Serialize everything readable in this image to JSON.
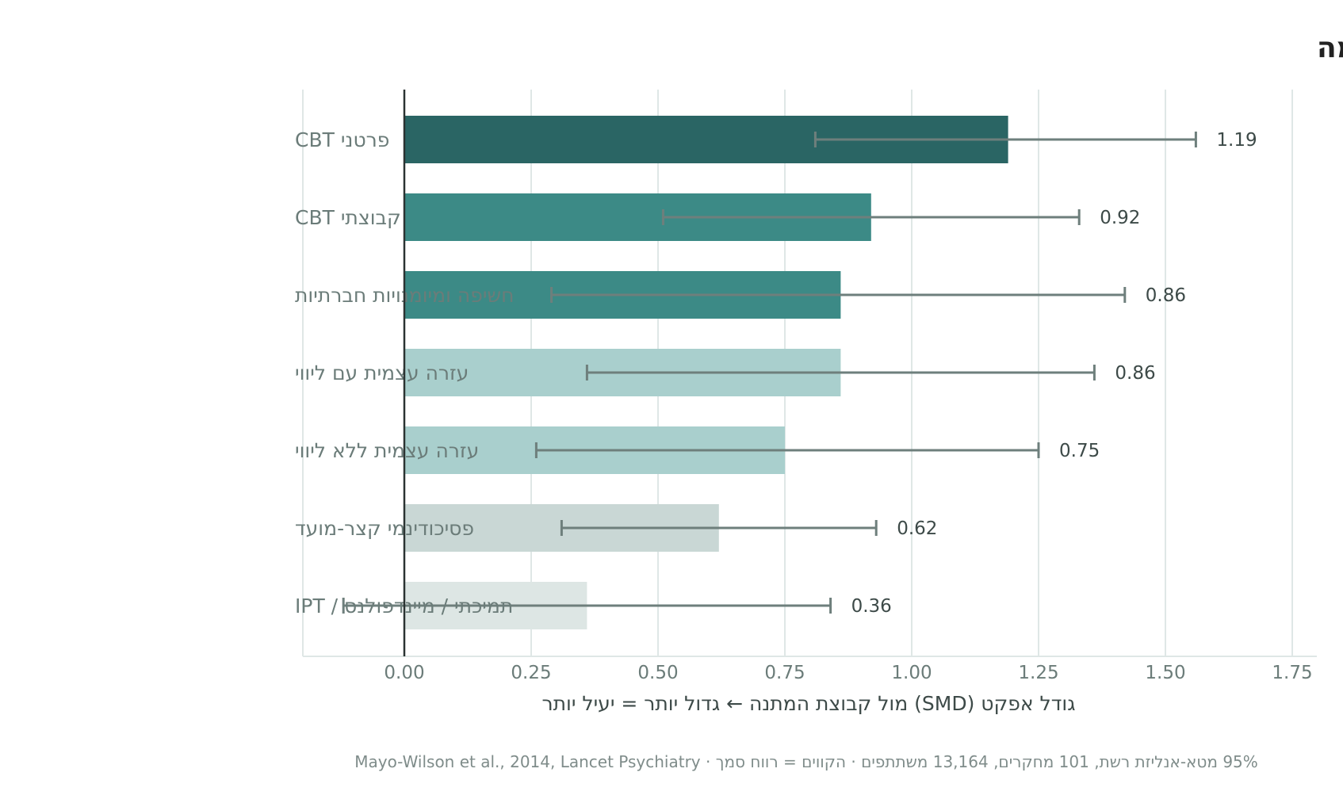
{
  "chart_data": {
    "type": "bar",
    "orientation": "horizontal",
    "title": "טיפולים פסיכולוגיים: מה עובד, ובכמה",
    "xlabel": "גודל אפקט (SMD) מול קבוצת המתנה  ←  גדול יותר = יעיל יותר",
    "xlim": [
      -0.2,
      1.8
    ],
    "xticks": [
      0.0,
      0.25,
      0.5,
      0.75,
      1.0,
      1.25,
      1.5,
      1.75
    ],
    "xtick_labels": [
      "0.00",
      "0.25",
      "0.50",
      "0.75",
      "1.00",
      "1.25",
      "1.50",
      "1.75"
    ],
    "grid": "vertical",
    "categories": [
      "פרטני CBT",
      "קבוצתי CBT",
      "חשיפה ומיומנויות חברתיות",
      "עזרה עצמית עם ליווי",
      "עזרה עצמית ללא ליווי",
      "פסיכודינמי קצר-מועד",
      "תמיכתי / מיינדפולנס / IPT"
    ],
    "values": [
      1.19,
      0.92,
      0.86,
      0.86,
      0.75,
      0.62,
      0.36
    ],
    "value_labels": [
      "1.19",
      "0.92",
      "0.86",
      "0.86",
      "0.75",
      "0.62",
      "0.36"
    ],
    "ci_low": [
      0.81,
      0.51,
      0.29,
      0.36,
      0.26,
      0.31,
      -0.12
    ],
    "ci_high": [
      1.56,
      1.33,
      1.42,
      1.36,
      1.25,
      0.93,
      0.84
    ],
    "colors": [
      "#2a6564",
      "#3c8a86",
      "#3c8a86",
      "#a9cfcd",
      "#a9cfcd",
      "#c9d7d5",
      "#dde6e4"
    ],
    "note": "95% מטא-אנליזת רשת, 101 מחקרים, 13,164 משתתפים · הקווים = רווח סמך · Mayo-Wilson et al., 2014, Lancet Psychiatry"
  },
  "style": {
    "grid_color": "#dfe7e6",
    "axis_color": "#2b3332",
    "error_color": "#6e7f7c"
  }
}
